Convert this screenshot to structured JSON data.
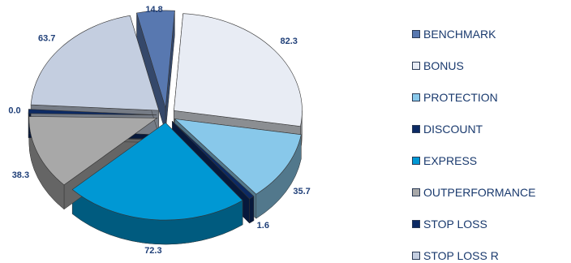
{
  "chart_data": {
    "type": "pie",
    "style": "3d-exploded",
    "legend_position": "right",
    "series": [
      {
        "name": "BENCHMARK",
        "value": 14.8,
        "label": "14.8",
        "color": "#5878b0"
      },
      {
        "name": "BONUS",
        "value": 82.3,
        "label": "82.3",
        "color": "#e8ecf4"
      },
      {
        "name": "PROTECTION",
        "value": 35.7,
        "label": "35.7",
        "color": "#88c8ea"
      },
      {
        "name": "DISCOUNT",
        "value": 1.6,
        "label": "1.6",
        "color": "#0c2a64"
      },
      {
        "name": "EXPRESS",
        "value": 72.3,
        "label": "72.3",
        "color": "#0098d4"
      },
      {
        "name": "OUTPERFORMANCE",
        "value": 38.3,
        "label": "38.3",
        "color": "#a8a8a8"
      },
      {
        "name": "STOP LOSS",
        "value": 0.0,
        "label": "0.0",
        "color": "#0c2a64"
      },
      {
        "name": "STOP LOSS R",
        "value": 63.7,
        "label": "63.7",
        "color": "#c4cee0"
      }
    ]
  }
}
